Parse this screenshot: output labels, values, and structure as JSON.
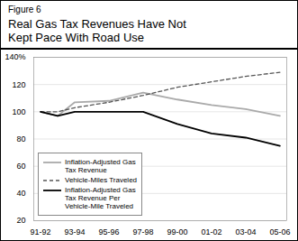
{
  "chart_data": {
    "type": "line",
    "title": "Real Gas Tax Revenues Have Not\nKept Pace With Road Use",
    "annotations": [
      "Figure 6"
    ],
    "x": [
      0,
      0.5,
      1,
      2,
      3,
      4,
      5,
      6,
      7
    ],
    "xlim": [
      -0.2,
      7.2
    ],
    "xticks": [
      {
        "value": 0,
        "label": "91-92"
      },
      {
        "value": 1,
        "label": "93-94"
      },
      {
        "value": 2,
        "label": "95-96"
      },
      {
        "value": 3,
        "label": "97-98"
      },
      {
        "value": 4,
        "label": "99-00"
      },
      {
        "value": 5,
        "label": "01-02"
      },
      {
        "value": 6,
        "label": "03-04"
      },
      {
        "value": 7,
        "label": "05-06"
      }
    ],
    "ylim": [
      20,
      140
    ],
    "yticks": [
      20,
      40,
      60,
      80,
      100,
      120,
      {
        "value": 140,
        "label": "140%"
      }
    ],
    "grid": "y",
    "legend": "lower left",
    "series": [
      {
        "name": "Inflation-Adjusted Gas\nTax Revenue",
        "color": "#aaaaaa",
        "line_style": "solid",
        "values": [
          100,
          97,
          107,
          108,
          114,
          109,
          105,
          102,
          97
        ]
      },
      {
        "name": "Vehicle-Miles Traveled",
        "color": "#555555",
        "line_style": "dashed",
        "values": [
          100,
          100,
          103,
          107,
          112,
          118,
          122,
          126,
          129
        ]
      },
      {
        "name": "Inflation-Adjusted Gas\nTax Revenue Per\nVehicle-Mile Traveled",
        "color": "#000000",
        "line_style": "solid",
        "values": [
          100,
          97,
          100,
          100,
          100,
          91,
          84,
          81,
          75
        ]
      }
    ]
  }
}
